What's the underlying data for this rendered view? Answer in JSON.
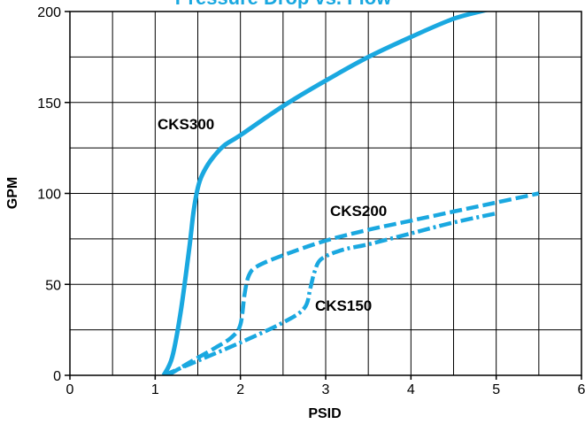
{
  "chart_data": {
    "type": "line",
    "title": "Pressure Drop vs. Flow",
    "xlabel": "PSID",
    "ylabel": "GPM",
    "xlim": [
      0,
      6
    ],
    "ylim": [
      0,
      200
    ],
    "x_ticks": [
      0,
      1,
      2,
      3,
      4,
      5,
      6
    ],
    "y_ticks": [
      0,
      50,
      100,
      150,
      200
    ],
    "x_tick_labels": [
      "0",
      "1",
      "2",
      "3",
      "4",
      "5",
      "6"
    ],
    "y_tick_labels": [
      "0",
      "50",
      "100",
      "150",
      "200"
    ],
    "grid": true,
    "legend": "none",
    "line_color": "#1aa8e0",
    "series": [
      {
        "name": "CKS300",
        "style": "solid",
        "x": [
          1.1,
          1.2,
          1.3,
          1.4,
          1.45,
          1.5,
          1.55,
          1.65,
          1.8,
          2.0,
          2.5,
          3.0,
          3.5,
          4.0,
          4.5,
          4.9
        ],
        "y": [
          0,
          10,
          35,
          70,
          90,
          103,
          110,
          118,
          126,
          132,
          148,
          162,
          175,
          186,
          196,
          201
        ]
      },
      {
        "name": "CKS200",
        "style": "dashed",
        "x": [
          1.15,
          1.4,
          1.7,
          1.9,
          2.0,
          2.05,
          2.1,
          2.2,
          2.5,
          3.0,
          3.5,
          4.0,
          4.5,
          5.0,
          5.5
        ],
        "y": [
          0,
          7,
          15,
          21,
          28,
          45,
          55,
          60,
          66,
          74,
          80,
          85,
          90,
          95,
          100
        ]
      },
      {
        "name": "CKS150",
        "style": "dash-dot",
        "x": [
          1.1,
          1.5,
          2.0,
          2.5,
          2.75,
          2.82,
          2.87,
          2.95,
          3.2,
          3.5,
          4.0,
          4.5,
          5.0
        ],
        "y": [
          0,
          8,
          18,
          29,
          37,
          48,
          57,
          64,
          69,
          72,
          78,
          84,
          89
        ]
      }
    ],
    "labels": [
      "CKS300",
      "CKS200",
      "CKS150"
    ]
  }
}
